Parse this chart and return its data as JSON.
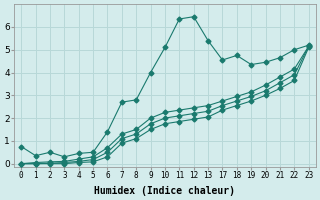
{
  "xlabel": "Humidex (Indice chaleur)",
  "bg_color": "#d4ecec",
  "grid_color": "#b8d8d8",
  "line_color": "#1a7a6e",
  "series1_x": [
    0,
    1,
    2,
    3,
    4,
    5,
    6,
    7,
    8,
    9,
    10,
    11,
    12,
    13,
    17,
    18,
    19,
    20,
    21,
    22,
    23
  ],
  "series1_y": [
    0.75,
    0.35,
    0.5,
    0.3,
    0.45,
    0.5,
    1.4,
    2.7,
    2.8,
    4.0,
    5.1,
    6.35,
    6.45,
    5.4,
    4.55,
    4.75,
    4.35,
    4.45,
    4.65,
    5.0,
    5.2
  ],
  "series2_x": [
    0,
    1,
    2,
    3,
    4,
    5,
    6,
    7,
    8,
    9,
    10,
    11,
    12,
    13,
    17,
    18,
    19,
    20,
    21,
    22,
    23
  ],
  "series2_y": [
    0.0,
    0.05,
    0.08,
    0.1,
    0.2,
    0.3,
    0.7,
    1.3,
    1.5,
    2.0,
    2.25,
    2.35,
    2.45,
    2.55,
    2.75,
    2.95,
    3.15,
    3.45,
    3.8,
    4.15,
    5.15
  ],
  "series3_x": [
    0,
    1,
    2,
    3,
    4,
    5,
    6,
    7,
    8,
    9,
    10,
    11,
    12,
    13,
    17,
    18,
    19,
    20,
    21,
    22,
    23
  ],
  "series3_y": [
    0.0,
    0.0,
    0.02,
    0.05,
    0.1,
    0.18,
    0.5,
    1.1,
    1.3,
    1.75,
    2.0,
    2.1,
    2.2,
    2.3,
    2.55,
    2.75,
    2.95,
    3.2,
    3.55,
    3.9,
    5.15
  ],
  "series4_x": [
    0,
    1,
    2,
    3,
    4,
    5,
    6,
    7,
    8,
    9,
    10,
    11,
    12,
    13,
    17,
    18,
    19,
    20,
    21,
    22,
    23
  ],
  "series4_y": [
    0.0,
    0.0,
    0.0,
    0.0,
    0.05,
    0.08,
    0.3,
    0.9,
    1.1,
    1.5,
    1.75,
    1.85,
    1.95,
    2.05,
    2.35,
    2.55,
    2.75,
    3.0,
    3.3,
    3.65,
    5.1
  ],
  "xtick_vals": [
    0,
    1,
    2,
    3,
    4,
    5,
    6,
    7,
    8,
    9,
    10,
    11,
    12,
    13,
    17,
    18,
    19,
    20,
    21,
    22,
    23
  ],
  "xtick_labels": [
    "0",
    "1",
    "2",
    "3",
    "4",
    "5",
    "6",
    "7",
    "8",
    "9",
    "10",
    "11",
    "12",
    "13",
    "17",
    "18",
    "19",
    "20",
    "21",
    "22",
    "23"
  ],
  "yticks": [
    0,
    1,
    2,
    3,
    4,
    5,
    6
  ],
  "xlim": [
    -0.5,
    23.5
  ],
  "ylim": [
    -0.15,
    7.0
  ]
}
